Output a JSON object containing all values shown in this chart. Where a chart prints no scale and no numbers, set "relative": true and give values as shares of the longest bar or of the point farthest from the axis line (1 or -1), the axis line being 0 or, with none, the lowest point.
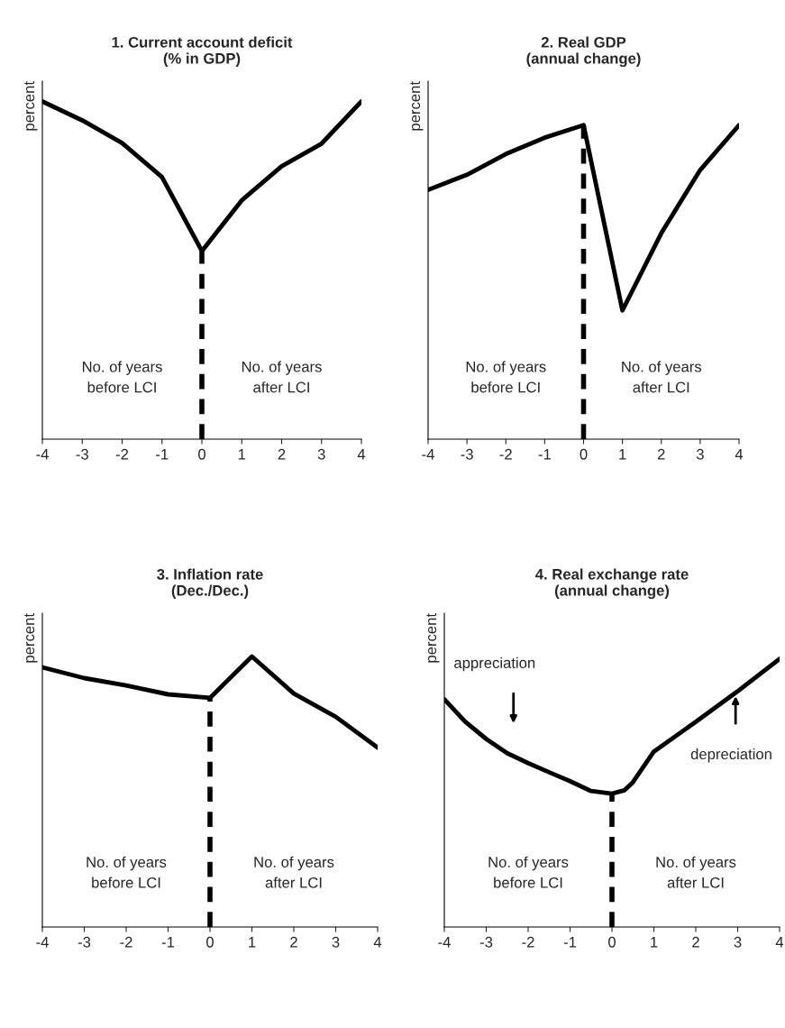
{
  "chart_data": [
    {
      "type": "line",
      "title": "1. Current account deficit\n(% in GDP)",
      "ylabel": "percent",
      "relative": true,
      "x": [
        -4,
        -3,
        -2,
        -1,
        0,
        1,
        2,
        3,
        4
      ],
      "xlim": [
        -4,
        4
      ],
      "xticks": [
        -4,
        -3,
        -2,
        -1,
        0,
        1,
        2,
        3,
        4
      ],
      "grid": false,
      "legend": false,
      "marker": "none",
      "line_style": "solid",
      "series": [
        {
          "color": "#000000",
          "values": [
            1,
            0.944,
            0.877,
            0.776,
            0.557,
            0.707,
            0.808,
            0.875,
            1
          ]
        }
      ],
      "ref_lines": [
        {
          "axis": "x",
          "value": 0,
          "color": "#000000",
          "line_style": "dashed"
        }
      ],
      "annotations": [
        "No. of years\nbefore LCI",
        "No. of years\nafter LCI"
      ]
    },
    {
      "type": "line",
      "title": "2. Real GDP\n(annual change)",
      "ylabel": "percent",
      "relative": true,
      "x": [
        -4,
        -3,
        -2,
        -1,
        0,
        1,
        2,
        3,
        4
      ],
      "xlim": [
        -4,
        4
      ],
      "xticks": [
        -4,
        -3,
        -2,
        -1,
        0,
        1,
        2,
        3,
        4
      ],
      "grid": false,
      "legend": false,
      "marker": "none",
      "line_style": "solid",
      "series": [
        {
          "color": "#000000",
          "values": [
            0.794,
            0.842,
            0.908,
            0.96,
            1,
            0.41,
            0.656,
            0.857,
            1
          ]
        }
      ],
      "ref_lines": [
        {
          "axis": "x",
          "value": 0,
          "color": "#000000",
          "line_style": "dashed"
        }
      ],
      "annotations": [
        "No. of years\nbefore LCI",
        "No. of years\nafter LCI"
      ]
    },
    {
      "type": "line",
      "title": "3. Inflation rate\n(Dec./Dec.)",
      "ylabel": "percent",
      "relative": true,
      "x": [
        -4,
        -3,
        -2,
        -1,
        0,
        1,
        2,
        3,
        4
      ],
      "xlim": [
        -4,
        4
      ],
      "xticks": [
        -4,
        -3,
        -2,
        -1,
        0,
        1,
        2,
        3,
        4
      ],
      "grid": false,
      "legend": false,
      "marker": "none",
      "line_style": "solid",
      "series": [
        {
          "color": "#000000",
          "values": [
            0.96,
            0.92,
            0.893,
            0.86,
            0.847,
            1,
            0.863,
            0.777,
            0.663
          ]
        }
      ],
      "ref_lines": [
        {
          "axis": "x",
          "value": 0,
          "color": "#000000",
          "line_style": "dashed"
        }
      ],
      "annotations": [
        "No. of years\nbefore LCI",
        "No. of years\nafter LCI"
      ]
    },
    {
      "type": "line",
      "title": "4. Real exchange rate\n(annual change)",
      "ylabel": "percent",
      "relative": true,
      "x": [
        -4,
        -3.5,
        -3,
        -2.5,
        -2,
        -1.5,
        -1,
        -0.5,
        0,
        0.3,
        0.5,
        1,
        2,
        3,
        4
      ],
      "xlim": [
        -4,
        4
      ],
      "xticks": [
        -4,
        -3,
        -2,
        -1,
        0,
        1,
        2,
        3,
        4
      ],
      "grid": false,
      "legend": false,
      "marker": "none",
      "line_style": "solid",
      "series": [
        {
          "color": "#000000",
          "values": [
            0.849,
            0.765,
            0.701,
            0.648,
            0.611,
            0.577,
            0.544,
            0.507,
            0.497,
            0.51,
            0.54,
            0.654,
            0.765,
            0.879,
            1
          ]
        }
      ],
      "ref_lines": [
        {
          "axis": "x",
          "value": 0,
          "color": "#000000",
          "line_style": "dashed"
        }
      ],
      "annotations": [
        "No. of years\nbefore LCI",
        "No. of years\nafter LCI",
        "appreciation",
        "depreciation"
      ]
    }
  ]
}
